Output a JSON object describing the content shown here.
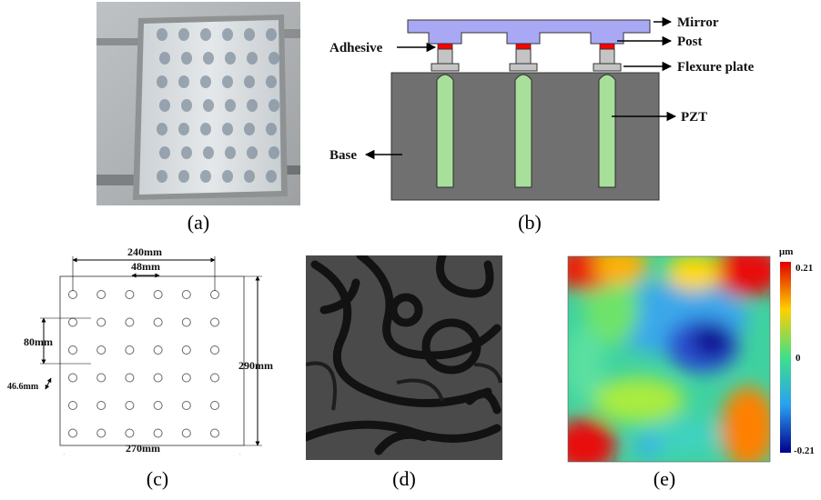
{
  "captions": [
    "(a)",
    "(b)",
    "(c)",
    "(d)",
    "(e)"
  ],
  "panel_b": {
    "mirror": "Mirror",
    "post": "Post",
    "adhesive": "Adhesive",
    "flexure_plate": "Flexure plate",
    "pzt": "PZT",
    "base": "Base"
  },
  "panel_c": {
    "width_top": "240mm",
    "pitch": "48mm",
    "height": "290mm",
    "row_spacing": "80mm",
    "offset": "46.6mm",
    "width_bottom": "270mm"
  },
  "panel_e": {
    "unit": "μm",
    "max": "0.21",
    "mid": "0",
    "min": "-0.21"
  },
  "colors": {
    "mirror": "#a8a8f5",
    "post": "#c4c4c4",
    "adhesive": "#ff0000",
    "pzt": "#a8df9a",
    "base": "#707070"
  }
}
